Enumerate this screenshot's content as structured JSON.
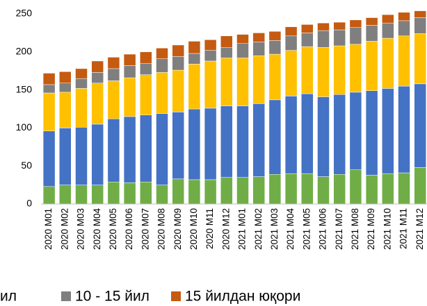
{
  "chart_data": {
    "type": "stacked_bar",
    "categories": [
      "2020 M01",
      "2020 M02",
      "2020 M03",
      "2020 M04",
      "2020 M05",
      "2020 M06",
      "2020 M07",
      "2020 M08",
      "2020 M09",
      "2020 M10",
      "2020 M11",
      "2020 M12",
      "2021 M01",
      "2021 M02",
      "2021 M03",
      "2021 M04",
      "2021 M05",
      "2021 M06",
      "2021 M07",
      "2021 M08",
      "2021 M09",
      "2021 M10",
      "2021 M11",
      "2021 M12"
    ],
    "series": [
      {
        "color": "#70ad47",
        "values": [
          23,
          25,
          25,
          25,
          29,
          28,
          29,
          25,
          33,
          32,
          32,
          35,
          35,
          36,
          39,
          40,
          40,
          36,
          39,
          45,
          38,
          40,
          41,
          48
        ]
      },
      {
        "color": "#4472c4",
        "values": [
          73,
          75,
          76,
          80,
          83,
          87,
          88,
          94,
          88,
          93,
          94,
          94,
          94,
          96,
          98,
          102,
          105,
          105,
          105,
          102,
          111,
          112,
          114,
          110
        ]
      },
      {
        "name": "ил",
        "color": "#ffc000",
        "values": [
          50,
          47,
          51,
          54,
          50,
          51,
          53,
          54,
          55,
          59,
          62,
          63,
          63,
          63,
          60,
          60,
          62,
          65,
          64,
          63,
          65,
          66,
          66,
          66
        ]
      },
      {
        "name": "10 - 15 йил",
        "color": "#7f7f7f",
        "values": [
          11,
          12,
          13,
          14,
          16,
          16,
          15,
          18,
          18,
          14,
          14,
          14,
          19,
          18,
          18,
          19,
          18,
          22,
          21,
          22,
          21,
          20,
          20,
          21
        ]
      },
      {
        "name": "15 йилдан юқори",
        "color": "#c55a11",
        "values": [
          15,
          15,
          13,
          15,
          15,
          15,
          15,
          14,
          15,
          16,
          14,
          15,
          12,
          12,
          12,
          12,
          11,
          10,
          10,
          10,
          10,
          11,
          11,
          9
        ]
      }
    ],
    "ylim": [
      0,
      250
    ],
    "yticks": [
      0,
      50,
      100,
      150,
      200,
      250
    ],
    "grid": false
  }
}
